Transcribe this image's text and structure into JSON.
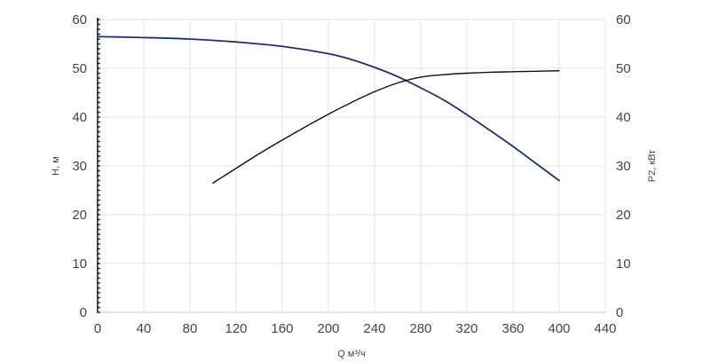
{
  "chart_data": {
    "type": "line",
    "xlabel": "Q м³/ч",
    "ylabel_left": "H, м",
    "ylabel_right": "P2, кВт",
    "xlim": [
      0,
      440
    ],
    "ylim_left": [
      0,
      60
    ],
    "ylim_right": [
      0,
      60
    ],
    "x_ticks": [
      0,
      40,
      80,
      120,
      160,
      200,
      240,
      280,
      320,
      360,
      400,
      440
    ],
    "y_ticks_left": [
      0,
      10,
      20,
      30,
      40,
      50,
      60
    ],
    "y_ticks_right": [
      0,
      10,
      20,
      30,
      40,
      50,
      60
    ],
    "grid": true,
    "series": [
      {
        "axis": "left",
        "color": "#1f2f6b",
        "x": [
          0,
          40,
          80,
          120,
          160,
          200,
          220,
          240,
          260,
          280,
          300,
          320,
          340,
          360,
          380,
          400
        ],
        "y": [
          56.5,
          56.3,
          56.0,
          55.4,
          54.5,
          53.0,
          51.8,
          50.2,
          48.3,
          46.0,
          43.5,
          40.5,
          37.3,
          34.0,
          30.5,
          27.0
        ]
      },
      {
        "axis": "right",
        "color": "#111111",
        "x": [
          100,
          120,
          140,
          160,
          180,
          200,
          220,
          240,
          260,
          280,
          300,
          320,
          340,
          360,
          380,
          400
        ],
        "y": [
          26.5,
          29.5,
          32.5,
          35.3,
          38.0,
          40.6,
          43.0,
          45.2,
          47.0,
          48.2,
          48.7,
          49.0,
          49.2,
          49.3,
          49.4,
          49.5
        ]
      }
    ]
  }
}
